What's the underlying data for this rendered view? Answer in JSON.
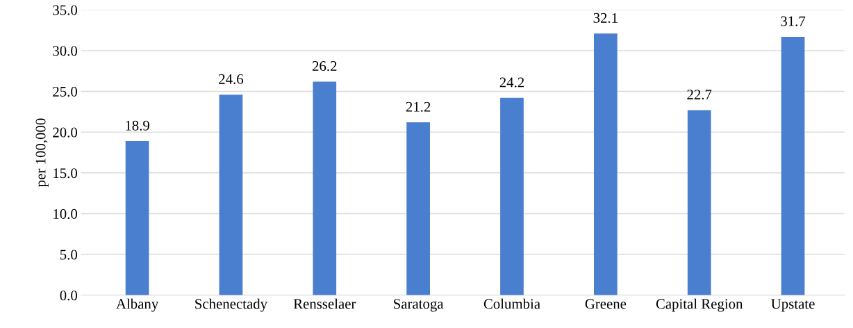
{
  "chart_data": {
    "type": "bar",
    "ylabel": "per 100,000",
    "categories": [
      "Albany",
      "Schenectady",
      "Rensselaer",
      "Saratoga",
      "Columbia",
      "Greene",
      "Capital Region",
      "Upstate"
    ],
    "values": [
      18.9,
      24.6,
      26.2,
      21.2,
      24.2,
      32.1,
      22.7,
      31.7
    ],
    "color": "#4a7fd0",
    "ylim": [
      0,
      35
    ],
    "yticks": [
      {
        "value": 0,
        "label": "0.0"
      },
      {
        "value": 5,
        "label": "5.0"
      },
      {
        "value": 10,
        "label": "10.0"
      },
      {
        "value": 15,
        "label": "15.0"
      },
      {
        "value": 20,
        "label": "20.0"
      },
      {
        "value": 25,
        "label": "25.0"
      },
      {
        "value": 30,
        "label": "30.0"
      },
      {
        "value": 35,
        "label": "35.0"
      }
    ],
    "grid": "y",
    "data_labels": true,
    "legend": false
  }
}
